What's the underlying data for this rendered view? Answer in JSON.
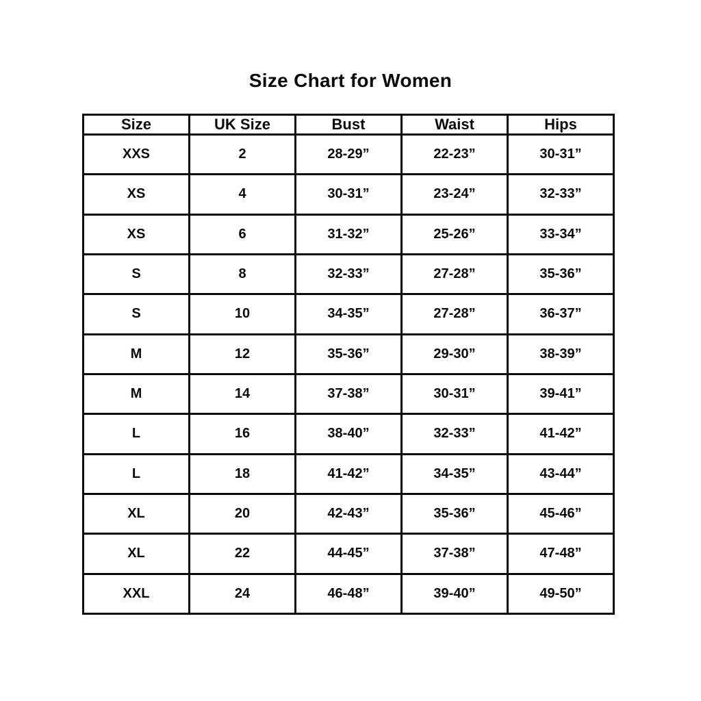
{
  "chart_data": {
    "type": "table",
    "title": "Size Chart for Women",
    "columns": [
      "Size",
      "UK Size",
      "Bust",
      "Waist",
      "Hips"
    ],
    "rows": [
      [
        "XXS",
        "2",
        "28-29”",
        "22-23”",
        "30-31”"
      ],
      [
        "XS",
        "4",
        "30-31”",
        "23-24”",
        "32-33”"
      ],
      [
        "XS",
        "6",
        "31-32”",
        "25-26”",
        "33-34”"
      ],
      [
        "S",
        "8",
        "32-33”",
        "27-28”",
        "35-36”"
      ],
      [
        "S",
        "10",
        "34-35”",
        "27-28”",
        "36-37”"
      ],
      [
        "M",
        "12",
        "35-36”",
        "29-30”",
        "38-39”"
      ],
      [
        "M",
        "14",
        "37-38”",
        "30-31”",
        "39-41”"
      ],
      [
        "L",
        "16",
        "38-40”",
        "32-33”",
        "41-42”"
      ],
      [
        "L",
        "18",
        "41-42”",
        "34-35”",
        "43-44”"
      ],
      [
        "XL",
        "20",
        "42-43”",
        "35-36”",
        "45-46”"
      ],
      [
        "XL",
        "22",
        "44-45”",
        "37-38”",
        "47-48”"
      ],
      [
        "XXL",
        "24",
        "46-48”",
        "39-40”",
        "49-50”"
      ]
    ],
    "layout": {
      "legend": "none",
      "grid": "full-borders"
    },
    "colors": {
      "text": "#0a0a0a",
      "border": "#0a0a0a",
      "background": "#ffffff"
    }
  }
}
